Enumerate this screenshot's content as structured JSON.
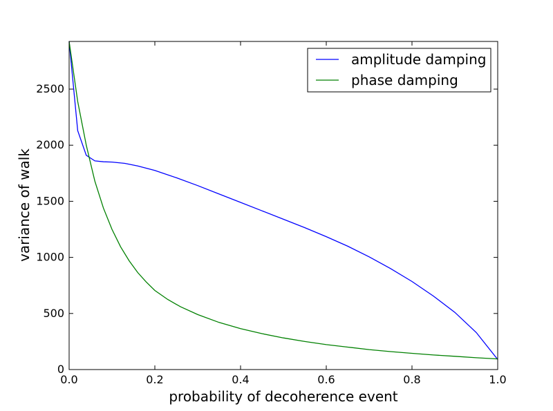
{
  "chart_data": {
    "type": "line",
    "title": "",
    "xlabel": "probability of decoherence event",
    "ylabel": "variance of walk",
    "xlim": [
      0.0,
      1.0
    ],
    "ylim": [
      0,
      2925
    ],
    "xticks": [
      0.0,
      0.2,
      0.4,
      0.6,
      0.8,
      1.0
    ],
    "xtick_labels": [
      "0.0",
      "0.2",
      "0.4",
      "0.6",
      "0.8",
      "1.0"
    ],
    "yticks": [
      0,
      500,
      1000,
      1500,
      2000,
      2500
    ],
    "ytick_labels": [
      "0",
      "500",
      "1000",
      "1500",
      "2000",
      "2500"
    ],
    "grid": false,
    "legend_position": "top-right",
    "series": [
      {
        "name": "amplitude damping",
        "color": "#0000ff",
        "x": [
          0.0,
          0.02,
          0.04,
          0.06,
          0.08,
          0.1,
          0.13,
          0.16,
          0.2,
          0.25,
          0.3,
          0.35,
          0.4,
          0.45,
          0.5,
          0.55,
          0.6,
          0.65,
          0.7,
          0.75,
          0.8,
          0.85,
          0.9,
          0.95,
          1.0
        ],
        "y": [
          2925,
          2130,
          1910,
          1860,
          1852,
          1850,
          1838,
          1815,
          1775,
          1710,
          1640,
          1565,
          1490,
          1415,
          1340,
          1265,
          1185,
          1100,
          1005,
          900,
          785,
          655,
          510,
          330,
          90
        ]
      },
      {
        "name": "phase damping",
        "color": "#008000",
        "x": [
          0.0,
          0.02,
          0.04,
          0.06,
          0.08,
          0.1,
          0.12,
          0.14,
          0.16,
          0.18,
          0.2,
          0.23,
          0.26,
          0.3,
          0.35,
          0.4,
          0.45,
          0.5,
          0.55,
          0.6,
          0.65,
          0.7,
          0.75,
          0.8,
          0.85,
          0.9,
          0.95,
          1.0
        ],
        "y": [
          2925,
          2390,
          2000,
          1680,
          1440,
          1250,
          1095,
          970,
          865,
          780,
          705,
          625,
          560,
          490,
          420,
          365,
          320,
          282,
          250,
          222,
          200,
          178,
          160,
          145,
          130,
          118,
          105,
          95
        ]
      }
    ]
  }
}
